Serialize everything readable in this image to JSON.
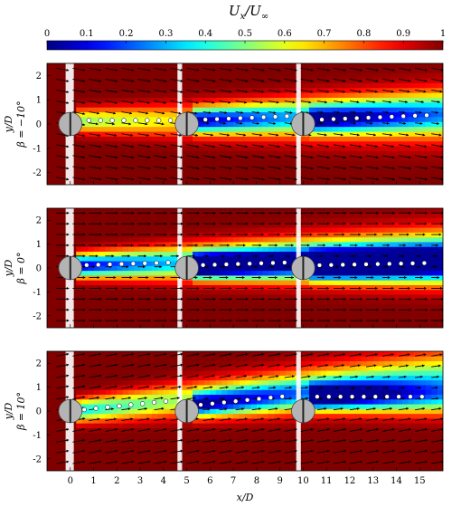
{
  "colorbar": {
    "label": "U_x/U_∞",
    "label_main": "U",
    "label_sub1": "x",
    "label_sep": "/",
    "label_sub2": "∞",
    "ticks": [
      "0",
      "0.1",
      "0.2",
      "0.3",
      "0.4",
      "0.5",
      "0.6",
      "0.7",
      "0.8",
      "0.9",
      "1"
    ],
    "range": [
      0,
      1
    ],
    "colormap": "jet"
  },
  "shared_xlabel": "x/D",
  "colors": {
    "cylinder_fill": "#b4b4b4",
    "marker_fill": "#ffffff",
    "masked": "#ffffff",
    "arrow": "#000000"
  },
  "chart_data": [
    {
      "type": "heatmap",
      "panel": "beta = -10",
      "ylabel_line1": "y/D",
      "ylabel_line2": "β = −10°",
      "xlim": [
        -1,
        16
      ],
      "ylim": [
        -2.5,
        2.5
      ],
      "xticks": [
        "0",
        "1",
        "2",
        "3",
        "4",
        "5",
        "6",
        "7",
        "8",
        "9",
        "10",
        "11",
        "12",
        "13",
        "14",
        "15"
      ],
      "yticks": [
        "2",
        "1",
        "0",
        "-1",
        "-2"
      ],
      "show_xticklabels": false,
      "cylinders_x": [
        0,
        5,
        10
      ],
      "wake_centerline_y": [
        0.15,
        0.15,
        0.15
      ],
      "wake_centerline_slope": [
        0.0,
        0.04,
        0.04
      ],
      "wake_min_velocity": [
        0.5,
        0.35,
        0.5
      ],
      "tracker_x": [
        [
          0.8,
          1.3,
          1.8,
          2.3,
          2.8,
          3.3,
          3.8,
          4.3
        ],
        [
          5.8,
          6.3,
          6.8,
          7.3,
          7.8,
          8.3,
          8.8,
          9.3
        ],
        [
          10.8,
          11.3,
          11.8,
          12.3,
          12.8,
          13.3,
          13.8,
          14.3,
          14.8,
          15.3
        ]
      ],
      "inflow_angle_deg": -10
    },
    {
      "type": "heatmap",
      "panel": "beta = 0",
      "ylabel_line1": "y/D",
      "ylabel_line2": "β = 0°",
      "xlim": [
        -1,
        16
      ],
      "ylim": [
        -2.5,
        2.5
      ],
      "xticks": [
        "0",
        "1",
        "2",
        "3",
        "4",
        "5",
        "6",
        "7",
        "8",
        "9",
        "10",
        "11",
        "12",
        "13",
        "14",
        "15"
      ],
      "yticks": [
        "2",
        "1",
        "0",
        "-1",
        "-2"
      ],
      "show_xticklabels": false,
      "cylinders_x": [
        0,
        5,
        10
      ],
      "wake_centerline_y": [
        0.1,
        0.1,
        0.1
      ],
      "wake_centerline_slope": [
        0.03,
        0.03,
        0.02
      ],
      "wake_min_velocity": [
        0.05,
        0.05,
        0.12
      ],
      "tracker_x": [
        [
          0.7,
          1.2,
          1.7,
          2.2,
          2.7,
          3.2,
          3.7,
          4.2
        ],
        [
          5.7,
          6.2,
          6.7,
          7.2,
          7.7,
          8.2,
          8.7,
          9.2
        ],
        [
          10.7,
          11.2,
          11.7,
          12.2,
          12.7,
          13.2,
          13.7,
          14.2,
          14.7,
          15.2
        ]
      ],
      "inflow_angle_deg": 0
    },
    {
      "type": "heatmap",
      "panel": "beta = 10",
      "ylabel_line1": "y/D",
      "ylabel_line2": "β = 10°",
      "xlim": [
        -1,
        16
      ],
      "ylim": [
        -2.5,
        2.5
      ],
      "xticks": [
        "0",
        "1",
        "2",
        "3",
        "4",
        "5",
        "6",
        "7",
        "8",
        "9",
        "10",
        "11",
        "12",
        "13",
        "14",
        "15"
      ],
      "yticks": [
        "2",
        "1",
        "0",
        "-1",
        "-2"
      ],
      "show_xticklabels": true,
      "cylinders_x": [
        0,
        5,
        10
      ],
      "wake_centerline_y": [
        0.0,
        0.2,
        0.6
      ],
      "wake_centerline_slope": [
        0.1,
        0.1,
        0.0
      ],
      "wake_min_velocity": [
        0.35,
        0.3,
        0.3
      ],
      "tracker_x": [
        [
          0.6,
          1.1,
          1.6,
          2.1,
          2.6,
          3.1,
          3.6,
          4.1
        ],
        [
          5.6,
          6.1,
          6.6,
          7.1,
          7.6,
          8.1,
          8.6,
          9.1
        ],
        [
          10.6,
          11.1,
          11.6,
          12.1,
          12.6,
          13.1,
          13.6,
          14.1,
          14.6,
          15.1
        ]
      ],
      "inflow_angle_deg": 10
    }
  ]
}
